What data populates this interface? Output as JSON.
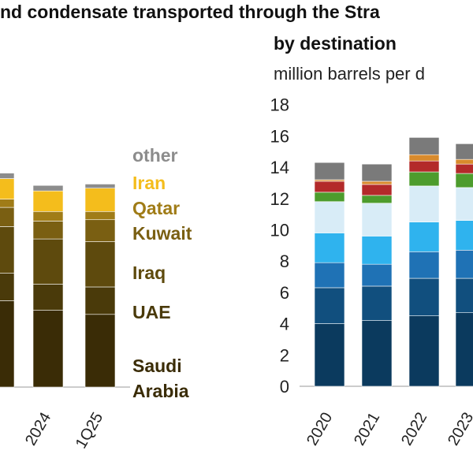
{
  "title": "nd condensate transported through the Stra",
  "chart_data": [
    {
      "type": "bar",
      "stacked": true,
      "categories": [
        "",
        "2024",
        "1Q25"
      ],
      "series": [
        {
          "name": "Saudi Arabia",
          "color": "#3a2c06",
          "values": [
            6.3,
            5.6,
            5.3
          ]
        },
        {
          "name": "UAE",
          "color": "#4a3a0a",
          "values": [
            2.0,
            1.9,
            2.0
          ]
        },
        {
          "name": "Iraq",
          "color": "#5e4a0d",
          "values": [
            3.4,
            3.3,
            3.3
          ]
        },
        {
          "name": "Kuwait",
          "color": "#7a5f12",
          "values": [
            1.4,
            1.3,
            1.6
          ]
        },
        {
          "name": "Qatar",
          "color": "#a07c17",
          "values": [
            0.6,
            0.7,
            0.6
          ]
        },
        {
          "name": "Iran",
          "color": "#f4bd1c",
          "values": [
            1.5,
            1.5,
            1.7
          ]
        },
        {
          "name": "other",
          "color": "#8c8c8c",
          "values": [
            0.4,
            0.4,
            0.3
          ]
        }
      ],
      "legend_labels": [
        "other",
        "Iran",
        "Qatar",
        "Kuwait",
        "Iraq",
        "UAE",
        "Saudi",
        "Arabia"
      ],
      "legend_colors": [
        "#8c8c8c",
        "#f4bd1c",
        "#a07c17",
        "#7a5f12",
        "#5e4a0d",
        "#4a3a0a",
        "#3a2c06",
        "#3a2c06"
      ],
      "ylim": [
        0,
        18
      ]
    },
    {
      "type": "bar",
      "stacked": true,
      "title": "by destination",
      "subtitle": "million barrels per d",
      "categories": [
        "2020",
        "2021",
        "2022",
        "2023"
      ],
      "yticks": [
        "0",
        "2",
        "4",
        "6",
        "8",
        "10",
        "12",
        "14",
        "16",
        "18"
      ],
      "ylim": [
        0,
        18
      ],
      "series": [
        {
          "color": "#0b3a5e",
          "values": [
            4.0,
            4.2,
            4.5,
            4.7
          ]
        },
        {
          "color": "#114f7e",
          "values": [
            2.3,
            2.2,
            2.4,
            2.2
          ]
        },
        {
          "color": "#1f72b5",
          "values": [
            1.6,
            1.4,
            1.7,
            1.8
          ]
        },
        {
          "color": "#2fb3ee",
          "values": [
            1.9,
            1.8,
            1.9,
            1.9
          ]
        },
        {
          "color": "#d8ecf7",
          "values": [
            2.0,
            2.1,
            2.3,
            2.1
          ]
        },
        {
          "color": "#4d9c2d",
          "values": [
            0.6,
            0.5,
            0.9,
            0.9
          ]
        },
        {
          "color": "#b32a2a",
          "values": [
            0.7,
            0.7,
            0.7,
            0.6
          ]
        },
        {
          "color": "#d88a2c",
          "values": [
            0.1,
            0.2,
            0.4,
            0.3
          ]
        },
        {
          "color": "#7a7a7a",
          "values": [
            1.1,
            1.1,
            1.1,
            1.0
          ]
        }
      ]
    }
  ]
}
